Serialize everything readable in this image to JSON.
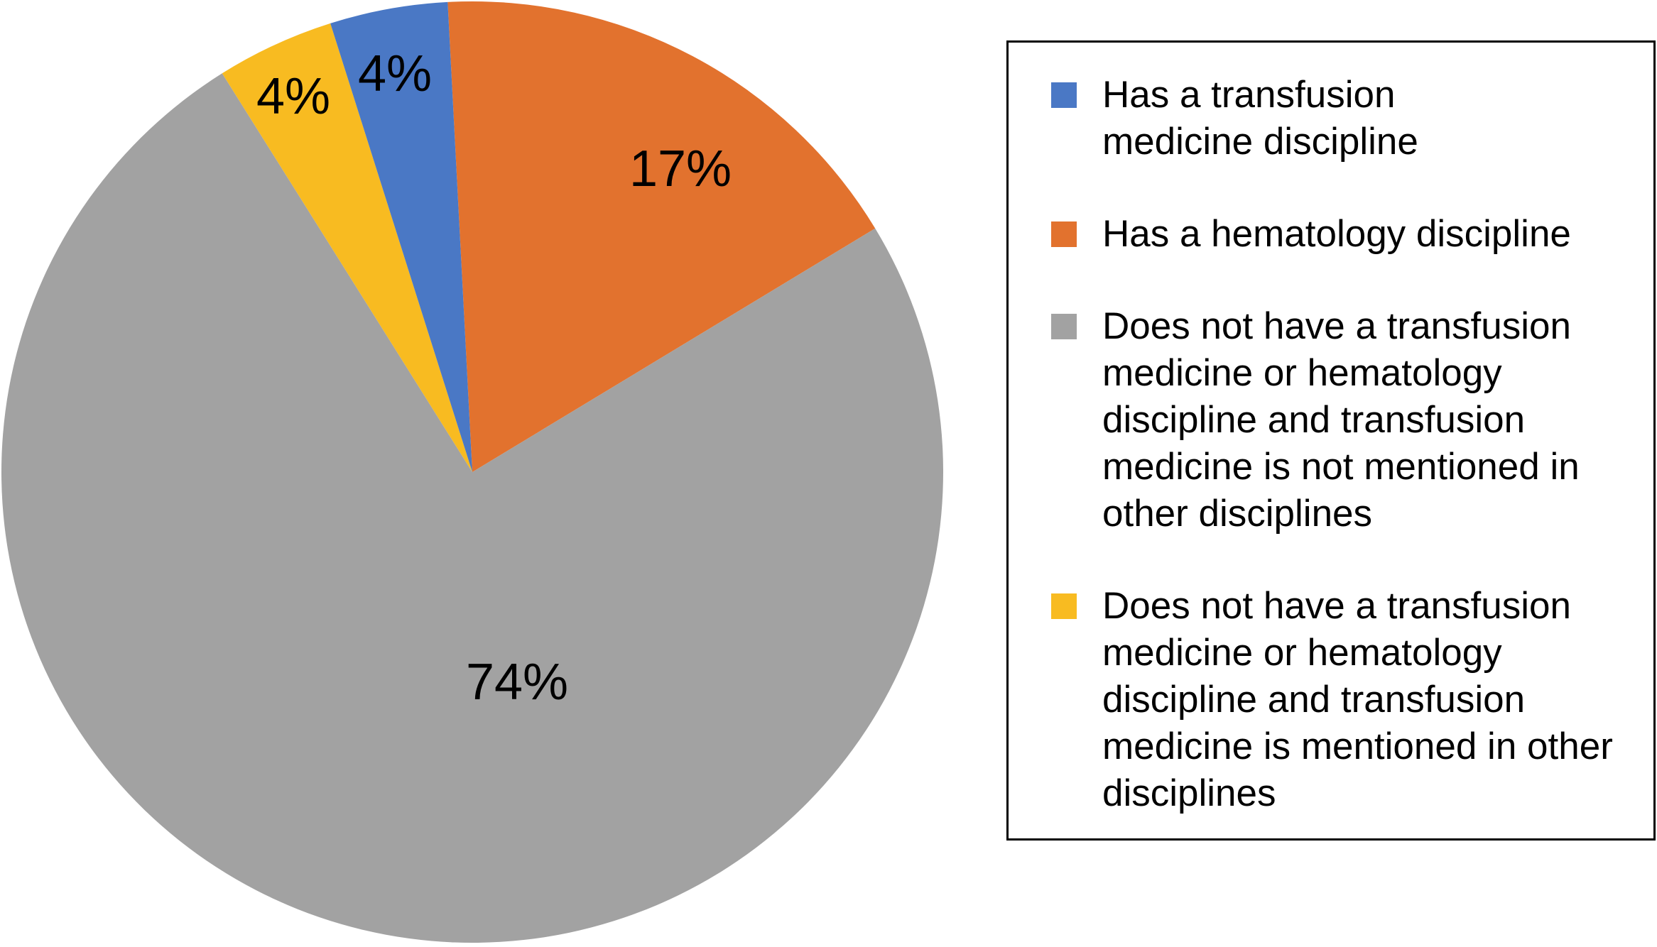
{
  "chart_data": {
    "type": "pie",
    "title": "",
    "unit": "%",
    "slices": [
      {
        "id": "transfusion",
        "label": "Has a transfusion medicine discipline",
        "value": 4,
        "display": "4%",
        "color": "#4A78C5"
      },
      {
        "id": "hematology",
        "label": "Has a hematology discipline",
        "value": 17,
        "display": "17%",
        "color": "#E2722E"
      },
      {
        "id": "neither-not-mentioned",
        "label": "Does not have a transfusion medicine or hematology discipline and transfusion medicine is not mentioned in other disciplines",
        "value": 74,
        "display": "74%",
        "color": "#A2A2A2"
      },
      {
        "id": "neither-mentioned",
        "label": "Does not have a transfusion medicine or hematology discipline and transfusion medicine is mentioned in other disciplines",
        "value": 4,
        "display": "4%",
        "color": "#F8BB21"
      }
    ],
    "legend_position": "right",
    "start_angle_deg": -3,
    "clockwise_order": [
      1,
      2,
      3,
      0
    ],
    "label_color": "#000000",
    "background": "#FFFFFF"
  },
  "legend": {
    "border_color": "#000000",
    "items": [
      {
        "slice": "transfusion",
        "lines": [
          "Has a transfusion",
          "medicine discipline"
        ]
      },
      {
        "slice": "hematology",
        "lines": [
          "Has a hematology discipline"
        ]
      },
      {
        "slice": "neither-not-mentioned",
        "lines": [
          "Does not have a transfusion",
          "medicine or hematology",
          "discipline and transfusion",
          "medicine is not mentioned in",
          "other disciplines"
        ]
      },
      {
        "slice": "neither-mentioned",
        "lines": [
          "Does not have a transfusion",
          "medicine or hematology",
          "discipline and transfusion",
          "medicine is mentioned in other",
          "disciplines"
        ]
      }
    ]
  }
}
